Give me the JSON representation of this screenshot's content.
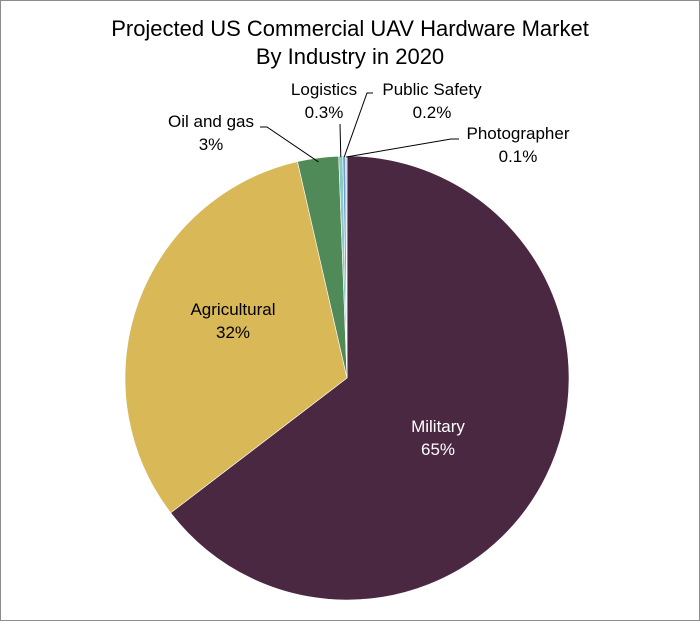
{
  "chart_data": {
    "type": "pie",
    "title_lines": [
      "Projected US Commercial UAV Hardware Market",
      "By Industry in 2020"
    ],
    "slices": [
      {
        "label": "Military",
        "value": 65,
        "display": "65%",
        "color": "#4a2841"
      },
      {
        "label": "Agricultural",
        "value": 32,
        "display": "32%",
        "color": "#d9b858"
      },
      {
        "label": "Oil and gas",
        "value": 3,
        "display": "3%",
        "color": "#4f8a58"
      },
      {
        "label": "Logistics",
        "value": 0.3,
        "display": "0.3%",
        "color": "#8cc9c4"
      },
      {
        "label": "Public Safety",
        "value": 0.2,
        "display": "0.2%",
        "color": "#6a9fd0"
      },
      {
        "label": "Photographer",
        "value": 0.1,
        "display": "0.1%",
        "color": "#c7cdd9"
      }
    ],
    "legend": "none"
  }
}
